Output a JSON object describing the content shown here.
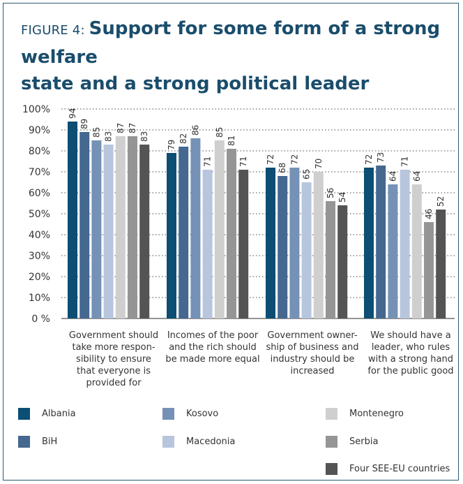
{
  "figure": {
    "prefix": "FIGURE 4: ",
    "title_line1": "Support for some form of a strong welfare",
    "title_line2": "state and a strong political leader"
  },
  "chart_data": {
    "type": "bar",
    "title": "Support for some form of a strong welfare state and a strong political leader",
    "ylim": [
      0,
      100
    ],
    "ytick_labels": [
      "0 %",
      "10%",
      "20%",
      "30%",
      "40%",
      "50%",
      "60%",
      "70%",
      "80%",
      "90%",
      "100%"
    ],
    "ytick_values": [
      0,
      10,
      20,
      30,
      40,
      50,
      60,
      70,
      80,
      90,
      100
    ],
    "grid": "dotted horizontal",
    "legend_position": "bottom",
    "categories": [
      [
        "Government should",
        "take more respon-",
        "sibility to ensure",
        "that everyone is",
        "provided for"
      ],
      [
        "Incomes of the poor",
        "and the rich should",
        "be made more equal"
      ],
      [
        "Government owner-",
        "ship of business and",
        "industry should be",
        "increased"
      ],
      [
        "We should have a",
        "leader, who rules",
        "with a strong hand",
        "for the public good"
      ]
    ],
    "series": [
      {
        "name": "Albania",
        "color": "#0d4e74",
        "values": [
          94,
          79,
          72,
          72
        ]
      },
      {
        "name": "BiH",
        "color": "#44688f",
        "values": [
          89,
          82,
          68,
          73
        ]
      },
      {
        "name": "Kosovo",
        "color": "#7591b5",
        "values": [
          85,
          86,
          72,
          64
        ]
      },
      {
        "name": "Macedonia",
        "color": "#b8c6dd",
        "values": [
          83,
          71,
          65,
          71
        ]
      },
      {
        "name": "Montenegro",
        "color": "#cfcfcf",
        "values": [
          87,
          85,
          70,
          64
        ]
      },
      {
        "name": "Serbia",
        "color": "#959595",
        "values": [
          87,
          81,
          56,
          46
        ]
      },
      {
        "name": "Four SEE-EU countries",
        "color": "#545454",
        "values": [
          83,
          71,
          54,
          52
        ]
      }
    ]
  }
}
